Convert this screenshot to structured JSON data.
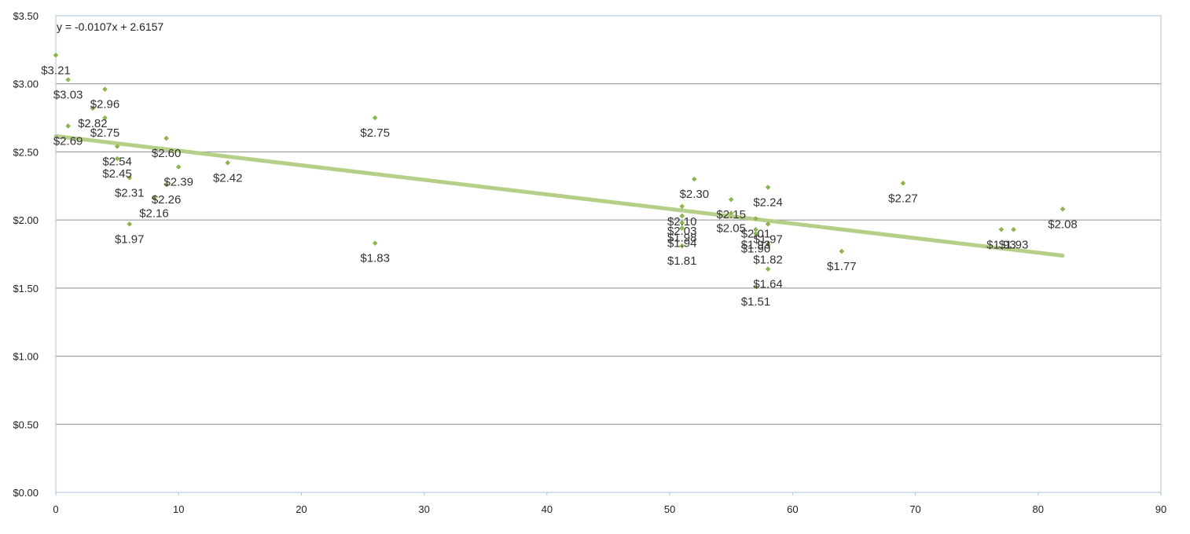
{
  "chart_data": {
    "type": "scatter",
    "title": "",
    "xlabel": "",
    "ylabel": "",
    "xlim": [
      0,
      90
    ],
    "ylim": [
      0,
      3.5
    ],
    "x_ticks": [
      0,
      10,
      20,
      30,
      40,
      50,
      60,
      70,
      80,
      90
    ],
    "y_ticks": [
      0,
      0.5,
      1.0,
      1.5,
      2.0,
      2.5,
      3.0,
      3.5
    ],
    "y_tick_labels": [
      "$0.00",
      "$0.50",
      "$1.00",
      "$1.50",
      "$2.00",
      "$2.50",
      "$3.00",
      "$3.50"
    ],
    "grid": "horizontal",
    "legend": "none",
    "marker_color": "#8db64a",
    "trendline_color": "#b5cf88",
    "trendline": {
      "slope": -0.0107,
      "intercept": 2.6157,
      "x_range": [
        0,
        82
      ],
      "equation_label": "y = -0.0107x + 2.6157"
    },
    "points": [
      {
        "x": 0,
        "y": 3.21,
        "label": "$3.21"
      },
      {
        "x": 1,
        "y": 3.03,
        "label": "$3.03"
      },
      {
        "x": 4,
        "y": 2.96,
        "label": "$2.96"
      },
      {
        "x": 3,
        "y": 2.82,
        "label": "$2.82"
      },
      {
        "x": 4,
        "y": 2.75,
        "label": "$2.75"
      },
      {
        "x": 1,
        "y": 2.69,
        "label": "$2.69"
      },
      {
        "x": 9,
        "y": 2.6,
        "label": "$2.60"
      },
      {
        "x": 5,
        "y": 2.54,
        "label": "$2.54"
      },
      {
        "x": 5,
        "y": 2.45,
        "label": "$2.45"
      },
      {
        "x": 10,
        "y": 2.39,
        "label": "$2.39"
      },
      {
        "x": 14,
        "y": 2.42,
        "label": "$2.42"
      },
      {
        "x": 6,
        "y": 2.31,
        "label": "$2.31"
      },
      {
        "x": 9,
        "y": 2.26,
        "label": "$2.26"
      },
      {
        "x": 8,
        "y": 2.16,
        "label": "$2.16"
      },
      {
        "x": 6,
        "y": 1.97,
        "label": "$1.97"
      },
      {
        "x": 26,
        "y": 2.75,
        "label": "$2.75"
      },
      {
        "x": 26,
        "y": 1.83,
        "label": "$1.83"
      },
      {
        "x": 52,
        "y": 2.3,
        "label": "$2.30"
      },
      {
        "x": 51,
        "y": 2.1,
        "label": "$2.10"
      },
      {
        "x": 51,
        "y": 2.03,
        "label": "$2.03"
      },
      {
        "x": 51,
        "y": 1.98,
        "label": "$1.98"
      },
      {
        "x": 51,
        "y": 1.94,
        "label": "$1.94"
      },
      {
        "x": 51,
        "y": 1.81,
        "label": "$1.81"
      },
      {
        "x": 55,
        "y": 2.15,
        "label": "$2.15"
      },
      {
        "x": 55,
        "y": 2.05,
        "label": "$2.05"
      },
      {
        "x": 58,
        "y": 2.24,
        "label": "$2.24"
      },
      {
        "x": 57,
        "y": 2.01,
        "label": "$2.01"
      },
      {
        "x": 58,
        "y": 1.97,
        "label": "$1.97"
      },
      {
        "x": 57,
        "y": 1.93,
        "label": "$1.93"
      },
      {
        "x": 57,
        "y": 1.9,
        "label": "$1.90"
      },
      {
        "x": 58,
        "y": 1.82,
        "label": "$1.82"
      },
      {
        "x": 58,
        "y": 1.64,
        "label": "$1.64"
      },
      {
        "x": 57,
        "y": 1.51,
        "label": "$1.51"
      },
      {
        "x": 64,
        "y": 1.77,
        "label": "$1.77"
      },
      {
        "x": 69,
        "y": 2.27,
        "label": "$2.27"
      },
      {
        "x": 77,
        "y": 1.93,
        "label": "$1.93"
      },
      {
        "x": 78,
        "y": 1.93,
        "label": "$1.93"
      },
      {
        "x": 82,
        "y": 2.08,
        "label": "$2.08"
      }
    ]
  }
}
